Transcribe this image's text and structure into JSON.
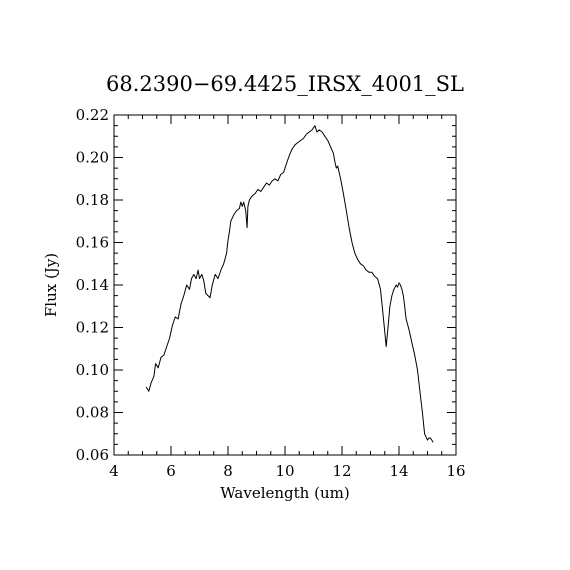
{
  "chart_data": {
    "type": "line",
    "title": "68.2390−69.4425_IRSX_4001_SL",
    "xlabel": "Wavelength (um)",
    "ylabel": "Flux (Jy)",
    "xlim": [
      4,
      16
    ],
    "ylim": [
      0.06,
      0.22
    ],
    "x_ticks": [
      4,
      6,
      8,
      10,
      12,
      14,
      16
    ],
    "x_tick_labels": [
      "4",
      "6",
      "8",
      "10",
      "12",
      "14",
      "16"
    ],
    "y_ticks": [
      0.06,
      0.08,
      0.1,
      0.12,
      0.14,
      0.16,
      0.18,
      0.2,
      0.22
    ],
    "y_tick_labels": [
      "0.06",
      "0.08",
      "0.10",
      "0.12",
      "0.14",
      "0.16",
      "0.18",
      "0.20",
      "0.22"
    ],
    "grid": false,
    "series": [
      {
        "x": [
          5.13,
          5.22,
          5.3,
          5.4,
          5.46,
          5.55,
          5.65,
          5.75,
          5.85,
          5.95,
          6.05,
          6.15,
          6.25,
          6.35,
          6.45,
          6.55,
          6.65,
          6.72,
          6.8,
          6.88,
          6.95,
          7.0,
          7.08,
          7.15,
          7.22,
          7.3,
          7.37,
          7.45,
          7.55,
          7.65,
          7.75,
          7.85,
          7.95,
          8.0,
          8.05,
          8.1,
          8.2,
          8.3,
          8.4,
          8.45,
          8.5,
          8.55,
          8.62,
          8.67,
          8.7,
          8.75,
          8.85,
          8.95,
          9.05,
          9.15,
          9.25,
          9.35,
          9.45,
          9.55,
          9.65,
          9.75,
          9.85,
          9.95,
          10.05,
          10.15,
          10.25,
          10.35,
          10.45,
          10.55,
          10.65,
          10.75,
          10.85,
          10.95,
          11.05,
          11.12,
          11.2,
          11.3,
          11.4,
          11.5,
          11.6,
          11.7,
          11.75,
          11.8,
          11.85,
          11.9,
          11.95,
          12.05,
          12.15,
          12.25,
          12.35,
          12.45,
          12.55,
          12.65,
          12.75,
          12.85,
          12.95,
          13.05,
          13.15,
          13.25,
          13.35,
          13.45,
          13.55,
          13.62,
          13.68,
          13.75,
          13.82,
          13.9,
          13.95,
          14.0,
          14.05,
          14.1,
          14.15,
          14.2,
          14.25,
          14.35,
          14.45,
          14.55,
          14.65,
          14.75,
          14.82,
          14.9,
          15.0,
          15.05,
          15.1,
          15.15,
          15.2
        ],
        "y": [
          0.092,
          0.09,
          0.094,
          0.097,
          0.103,
          0.101,
          0.106,
          0.107,
          0.111,
          0.115,
          0.121,
          0.125,
          0.124,
          0.131,
          0.135,
          0.14,
          0.138,
          0.143,
          0.145,
          0.143,
          0.147,
          0.143,
          0.145,
          0.142,
          0.136,
          0.135,
          0.134,
          0.14,
          0.145,
          0.143,
          0.147,
          0.15,
          0.155,
          0.161,
          0.165,
          0.17,
          0.173,
          0.175,
          0.176,
          0.179,
          0.177,
          0.179,
          0.175,
          0.167,
          0.177,
          0.18,
          0.182,
          0.183,
          0.185,
          0.184,
          0.186,
          0.188,
          0.187,
          0.189,
          0.19,
          0.189,
          0.192,
          0.193,
          0.197,
          0.201,
          0.204,
          0.206,
          0.207,
          0.208,
          0.209,
          0.211,
          0.212,
          0.213,
          0.215,
          0.212,
          0.213,
          0.212,
          0.21,
          0.208,
          0.205,
          0.202,
          0.198,
          0.195,
          0.196,
          0.193,
          0.19,
          0.183,
          0.175,
          0.167,
          0.16,
          0.155,
          0.152,
          0.15,
          0.149,
          0.147,
          0.146,
          0.146,
          0.144,
          0.143,
          0.138,
          0.125,
          0.111,
          0.121,
          0.13,
          0.135,
          0.138,
          0.14,
          0.139,
          0.141,
          0.14,
          0.138,
          0.135,
          0.13,
          0.124,
          0.119,
          0.113,
          0.107,
          0.1,
          0.088,
          0.08,
          0.07,
          0.067,
          0.068,
          0.068,
          0.067,
          0.066
        ]
      }
    ]
  }
}
